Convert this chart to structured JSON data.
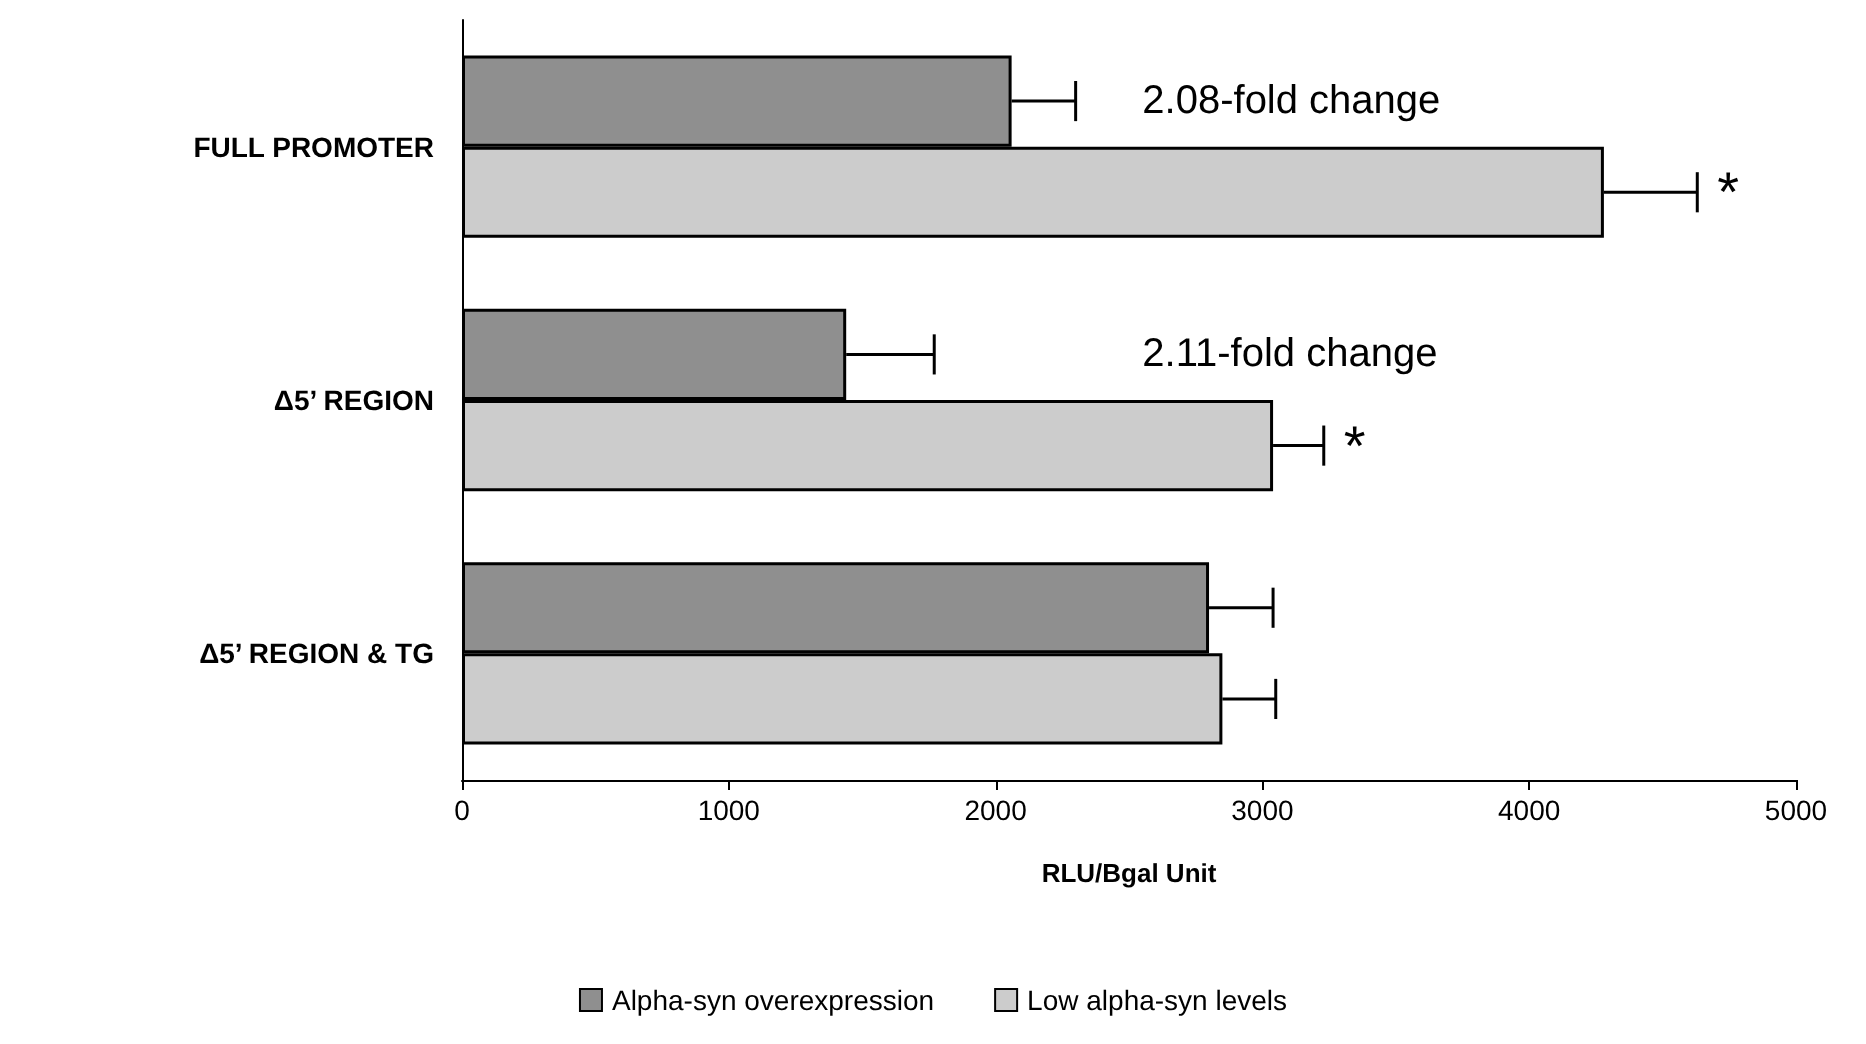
{
  "chart_data": {
    "type": "bar",
    "orientation": "horizontal",
    "xlabel": "RLU/Bgal Unit",
    "categories": [
      "FULL PROMOTER",
      "Δ5’ REGION",
      "Δ5’ REGION & TG"
    ],
    "series": [
      {
        "name": "Alpha-syn overexpression",
        "color": "#8f8f8f",
        "values": [
          2060,
          1440,
          2800
        ],
        "errors": [
          240,
          330,
          240
        ]
      },
      {
        "name": "Low alpha-syn levels",
        "color": "#cccccc",
        "values": [
          4280,
          3040,
          2850
        ],
        "errors": [
          350,
          190,
          200
        ]
      }
    ],
    "xlim": [
      0,
      5000
    ],
    "xticks": [
      0,
      1000,
      2000,
      3000,
      4000,
      5000
    ],
    "grid": false,
    "legend": "bottom",
    "annotations": [
      {
        "text": "2.08-fold change",
        "x": 2550,
        "y": "FULL PROMOTER"
      },
      {
        "text": "*",
        "x": 4280,
        "y": "FULL PROMOTER"
      },
      {
        "text": "2.11-fold change",
        "x": 2550,
        "y": "Δ5’ REGION"
      },
      {
        "text": "*",
        "x": 3040,
        "y": "Δ5’ REGION"
      }
    ]
  }
}
